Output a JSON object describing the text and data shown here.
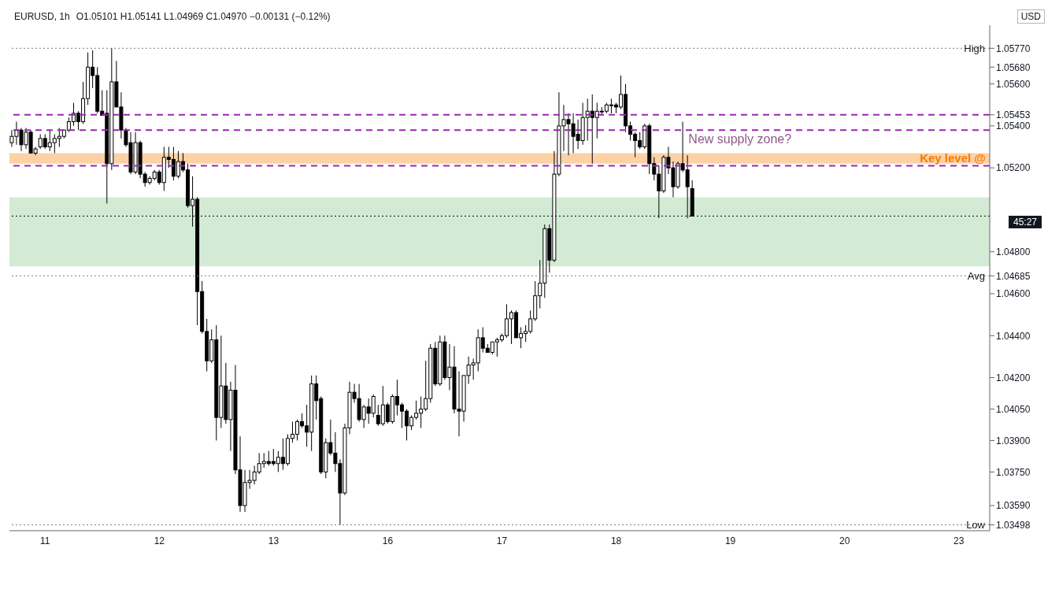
{
  "chart_data": {
    "type": "candlestick",
    "title": "EURUSD, 1h",
    "subtitle": "O1.05101 H1.05141 L1.04969 C1.04970 −0.00131 (−0.12%)",
    "ylabel": "USD",
    "categories": [
      null,
      null,
      null,
      null,
      null,
      null,
      null,
      "11",
      null,
      null,
      null,
      null,
      null,
      null,
      null,
      null,
      null,
      null,
      null,
      null,
      null,
      null,
      null,
      null,
      null,
      null,
      null,
      null,
      null,
      null,
      null,
      "12",
      null,
      null,
      null,
      null,
      null,
      null,
      null,
      null,
      null,
      null,
      null,
      null,
      null,
      null,
      null,
      null,
      null,
      null,
      null,
      null,
      null,
      null,
      null,
      "13",
      null,
      null,
      null,
      null,
      null,
      null,
      null,
      null,
      null,
      null,
      null,
      null,
      null,
      null,
      null,
      null,
      null,
      null,
      null,
      null,
      null,
      null,
      null,
      "16",
      null,
      null,
      null,
      null,
      null,
      null,
      null,
      null,
      null,
      null,
      null,
      null,
      null,
      null,
      null,
      null,
      null,
      null,
      null,
      null,
      null,
      null,
      null,
      "17",
      null,
      null,
      null,
      null,
      null,
      null,
      null,
      null,
      null,
      null,
      null,
      null,
      null,
      null,
      null,
      null,
      null,
      null,
      null,
      null,
      null,
      null,
      null,
      "18",
      null,
      null,
      null,
      null,
      null,
      null,
      null,
      null,
      null,
      null,
      null,
      null,
      null,
      null,
      null,
      null,
      null,
      null,
      null,
      null,
      null,
      null,
      null,
      "19",
      null,
      null,
      null,
      null,
      null,
      null,
      null,
      null,
      null,
      null,
      null,
      null,
      null,
      null,
      null,
      null,
      null,
      null,
      null,
      null,
      null,
      null,
      null,
      "20",
      null,
      null,
      null,
      null,
      null,
      null,
      null,
      null,
      null,
      null,
      null,
      null,
      null,
      null,
      null,
      null,
      null,
      null,
      null,
      null,
      null,
      null,
      null,
      "23",
      null,
      null,
      null,
      null,
      null,
      null
    ],
    "ohlc": [
      [
        1.0532,
        1.0538,
        1.053,
        1.0535
      ],
      [
        1.0535,
        1.0542,
        1.0531,
        1.0538
      ],
      [
        1.0538,
        1.0539,
        1.0528,
        1.0531
      ],
      [
        1.0531,
        1.0539,
        1.0529,
        1.0537
      ],
      [
        1.0537,
        1.0538,
        1.0527,
        1.0527
      ],
      [
        1.0527,
        1.053,
        1.0526,
        1.0529
      ],
      [
        1.053,
        1.0536,
        1.0529,
        1.0534
      ],
      [
        1.0534,
        1.0536,
        1.0529,
        1.053
      ],
      [
        1.053,
        1.0538,
        1.0528,
        1.0532
      ],
      [
        1.0532,
        1.0536,
        1.0527,
        1.0534
      ],
      [
        1.0534,
        1.0539,
        1.053,
        1.0535
      ],
      [
        1.0535,
        1.0538,
        1.0534,
        1.0538
      ],
      [
        1.0538,
        1.0544,
        1.0537,
        1.0542
      ],
      [
        1.0542,
        1.0551,
        1.054,
        1.0546
      ],
      [
        1.0546,
        1.0547,
        1.0538,
        1.0542
      ],
      [
        1.0542,
        1.0561,
        1.0541,
        1.0553
      ],
      [
        1.0553,
        1.0575,
        1.055,
        1.0568
      ],
      [
        1.0568,
        1.0576,
        1.0558,
        1.0564
      ],
      [
        1.0564,
        1.0568,
        1.0546,
        1.0547
      ],
      [
        1.0547,
        1.0557,
        1.0545,
        1.0545
      ],
      [
        1.0546,
        1.0557,
        1.0503,
        1.0522
      ],
      [
        1.0522,
        1.0577,
        1.0519,
        1.0561
      ],
      [
        1.0561,
        1.0571,
        1.0549,
        1.0549
      ],
      [
        1.0549,
        1.0556,
        1.0534,
        1.0538
      ],
      [
        1.0538,
        1.0539,
        1.053,
        1.0531
      ],
      [
        1.0532,
        1.0537,
        1.0517,
        1.0518
      ],
      [
        1.0518,
        1.0537,
        1.0517,
        1.0532
      ],
      [
        1.0532,
        1.0533,
        1.0515,
        1.0517
      ],
      [
        1.0517,
        1.0518,
        1.0511,
        1.0513
      ],
      [
        1.0513,
        1.0516,
        1.0512,
        1.0515
      ],
      [
        1.0515,
        1.0519,
        1.0514,
        1.0518
      ],
      [
        1.0518,
        1.0519,
        1.0512,
        1.0513
      ],
      [
        1.0513,
        1.053,
        1.0509,
        1.0525
      ],
      [
        1.0525,
        1.053,
        1.052,
        1.0524
      ],
      [
        1.0524,
        1.053,
        1.0514,
        1.0516
      ],
      [
        1.0516,
        1.0528,
        1.0515,
        1.0523
      ],
      [
        1.0523,
        1.0527,
        1.0518,
        1.0519
      ],
      [
        1.0519,
        1.0522,
        1.0501,
        1.0502
      ],
      [
        1.0502,
        1.0516,
        1.0492,
        1.0505
      ],
      [
        1.0505,
        1.0506,
        1.0445,
        1.0461
      ],
      [
        1.0461,
        1.0466,
        1.0441,
        1.0442
      ],
      [
        1.0442,
        1.0448,
        1.0423,
        1.0428
      ],
      [
        1.0428,
        1.0443,
        1.0427,
        1.0438
      ],
      [
        1.0438,
        1.0445,
        1.039,
        1.0401
      ],
      [
        1.0401,
        1.044,
        1.0396,
        1.0416
      ],
      [
        1.0416,
        1.0427,
        1.0398,
        1.04
      ],
      [
        1.04,
        1.0418,
        1.0385,
        1.0414
      ],
      [
        1.0414,
        1.0426,
        1.0374,
        1.0376
      ],
      [
        1.0376,
        1.0392,
        1.0356,
        1.0359
      ],
      [
        1.0359,
        1.0376,
        1.0356,
        1.037
      ],
      [
        1.037,
        1.0376,
        1.0367,
        1.0371
      ],
      [
        1.0371,
        1.0378,
        1.0369,
        1.0375
      ],
      [
        1.0375,
        1.0384,
        1.0374,
        1.0379
      ],
      [
        1.0379,
        1.0384,
        1.0377,
        1.038
      ],
      [
        1.038,
        1.0385,
        1.0378,
        1.0379
      ],
      [
        1.038,
        1.0386,
        1.0378,
        1.0379
      ],
      [
        1.0379,
        1.0385,
        1.0375,
        1.0382
      ],
      [
        1.0382,
        1.0391,
        1.0376,
        1.0379
      ],
      [
        1.0379,
        1.0393,
        1.0378,
        1.0391
      ],
      [
        1.0391,
        1.0399,
        1.0389,
        1.0393
      ],
      [
        1.0393,
        1.04,
        1.039,
        1.0399
      ],
      [
        1.0399,
        1.0403,
        1.0396,
        1.0397
      ],
      [
        1.0397,
        1.0407,
        1.0387,
        1.0394
      ],
      [
        1.0394,
        1.0421,
        1.0385,
        1.0417
      ],
      [
        1.0417,
        1.0421,
        1.04,
        1.0409
      ],
      [
        1.041,
        1.0411,
        1.0374,
        1.0375
      ],
      [
        1.0375,
        1.0391,
        1.0372,
        1.0389
      ],
      [
        1.0389,
        1.04,
        1.0383,
        1.0384
      ],
      [
        1.0384,
        1.0394,
        1.0375,
        1.0379
      ],
      [
        1.0379,
        1.0381,
        1.03498,
        1.0365
      ],
      [
        1.0365,
        1.0398,
        1.0364,
        1.0396
      ],
      [
        1.0396,
        1.0418,
        1.0393,
        1.0413
      ],
      [
        1.0413,
        1.0417,
        1.0408,
        1.041
      ],
      [
        1.041,
        1.0417,
        1.0399,
        1.04
      ],
      [
        1.04,
        1.0407,
        1.0396,
        1.0406
      ],
      [
        1.0406,
        1.041,
        1.0398,
        1.0403
      ],
      [
        1.0403,
        1.0412,
        1.0401,
        1.0411
      ],
      [
        1.0402,
        1.0407,
        1.0397,
        1.0398
      ],
      [
        1.0398,
        1.0416,
        1.0397,
        1.0407
      ],
      [
        1.0407,
        1.0408,
        1.0398,
        1.0399
      ],
      [
        1.0399,
        1.0412,
        1.0398,
        1.0411
      ],
      [
        1.0411,
        1.0419,
        1.0402,
        1.0407
      ],
      [
        1.0407,
        1.0408,
        1.0396,
        1.0404
      ],
      [
        1.0404,
        1.0405,
        1.039,
        1.0397
      ],
      [
        1.0397,
        1.0402,
        1.0395,
        1.0401
      ],
      [
        1.0401,
        1.0409,
        1.04,
        1.0403
      ],
      [
        1.0403,
        1.0411,
        1.0396,
        1.0405
      ],
      [
        1.0405,
        1.0428,
        1.0404,
        1.041
      ],
      [
        1.041,
        1.0436,
        1.0408,
        1.0434
      ],
      [
        1.0434,
        1.0437,
        1.0416,
        1.0417
      ],
      [
        1.0417,
        1.044,
        1.0416,
        1.0437
      ],
      [
        1.0437,
        1.044,
        1.0419,
        1.042
      ],
      [
        1.042,
        1.0436,
        1.0414,
        1.0425
      ],
      [
        1.0425,
        1.0435,
        1.0403,
        1.0405
      ],
      [
        1.0405,
        1.0423,
        1.0392,
        1.0404
      ],
      [
        1.0404,
        1.0421,
        1.0399,
        1.0421
      ],
      [
        1.0421,
        1.043,
        1.0417,
        1.0426
      ],
      [
        1.0426,
        1.0429,
        1.0419,
        1.0427
      ],
      [
        1.0427,
        1.0443,
        1.0423,
        1.0439
      ],
      [
        1.0439,
        1.0444,
        1.0432,
        1.0434
      ],
      [
        1.0434,
        1.0436,
        1.0432,
        1.0432
      ],
      [
        1.0432,
        1.0437,
        1.0431,
        1.0437
      ],
      [
        1.0437,
        1.0439,
        1.043,
        1.0438
      ],
      [
        1.0438,
        1.0441,
        1.0437,
        1.044
      ],
      [
        1.044,
        1.0455,
        1.0439,
        1.0448
      ],
      [
        1.0448,
        1.0452,
        1.0436,
        1.0451
      ],
      [
        1.0451,
        1.0452,
        1.0439,
        1.0439
      ],
      [
        1.0439,
        1.0444,
        1.0434,
        1.0441
      ],
      [
        1.0441,
        1.0445,
        1.0437,
        1.0442
      ],
      [
        1.0442,
        1.0452,
        1.0441,
        1.0448
      ],
      [
        1.0448,
        1.0466,
        1.0447,
        1.0459
      ],
      [
        1.0459,
        1.0476,
        1.0453,
        1.0465
      ],
      [
        1.0465,
        1.0493,
        1.0458,
        1.0491
      ],
      [
        1.0491,
        1.0493,
        1.047,
        1.0476
      ],
      [
        1.0476,
        1.0528,
        1.0475,
        1.0517
      ],
      [
        1.0517,
        1.0556,
        1.0516,
        1.054
      ],
      [
        1.054,
        1.055,
        1.0528,
        1.0543
      ],
      [
        1.0543,
        1.0546,
        1.0526,
        1.0541
      ],
      [
        1.0541,
        1.0546,
        1.0527,
        1.0535
      ],
      [
        1.0536,
        1.0543,
        1.0529,
        1.0533
      ],
      [
        1.0533,
        1.0551,
        1.0531,
        1.0544
      ],
      [
        1.0544,
        1.0553,
        1.0533,
        1.0547
      ],
      [
        1.0547,
        1.0555,
        1.0522,
        1.0544
      ],
      [
        1.0544,
        1.0551,
        1.0534,
        1.0547
      ],
      [
        1.0547,
        1.0549,
        1.0545,
        1.0547
      ],
      [
        1.0547,
        1.0551,
        1.0546,
        1.055
      ],
      [
        1.055,
        1.0553,
        1.0546,
        1.055
      ],
      [
        1.055,
        1.0551,
        1.0546,
        1.0549
      ],
      [
        1.0549,
        1.0564,
        1.0548,
        1.0555
      ],
      [
        1.0555,
        1.056,
        1.0537,
        1.054
      ],
      [
        1.054,
        1.0542,
        1.0533,
        1.0536
      ],
      [
        1.0536,
        1.0537,
        1.0525,
        1.0533
      ],
      [
        1.0533,
        1.0537,
        1.0529,
        1.053
      ],
      [
        1.053,
        1.0541,
        1.0529,
        1.054
      ],
      [
        1.054,
        1.0541,
        1.0517,
        1.0522
      ],
      [
        1.0522,
        1.0525,
        1.0514,
        1.0517
      ],
      [
        1.0517,
        1.0521,
        1.0496,
        1.0509
      ],
      [
        1.0509,
        1.0526,
        1.0508,
        1.0525
      ],
      [
        1.0525,
        1.053,
        1.0517,
        1.052
      ],
      [
        1.052,
        1.0523,
        1.0506,
        1.0511
      ],
      [
        1.0511,
        1.0523,
        1.051,
        1.0522
      ],
      [
        1.0522,
        1.0542,
        1.0518,
        1.0519
      ],
      [
        1.0519,
        1.0526,
        1.0496,
        1.0511
      ],
      [
        1.05101,
        1.05141,
        1.04969,
        1.0497
      ],
      null,
      null,
      null,
      null,
      null,
      null,
      null,
      null,
      null,
      null,
      null,
      null,
      null,
      null,
      null,
      null,
      null,
      null,
      null,
      null,
      null,
      null,
      null,
      null,
      null,
      null,
      null,
      null,
      null,
      null,
      null,
      null,
      null,
      null,
      null,
      null,
      null,
      null,
      null,
      null,
      null,
      null,
      null,
      null,
      null,
      null,
      null,
      null,
      null,
      null,
      null,
      null,
      null,
      null,
      null,
      null,
      null,
      null,
      null,
      null,
      null,
      null
    ],
    "color": "#000000",
    "ylim": [
      1.0347,
      1.0588
    ],
    "yticks": [
      {
        "value": 1.0577,
        "label": "1.05770"
      },
      {
        "value": 1.0568,
        "label": "1.05680"
      },
      {
        "value": 1.056,
        "label": "1.05600"
      },
      {
        "value": 1.05453,
        "label": "1.05453"
      },
      {
        "value": 1.054,
        "label": "1.05400"
      },
      {
        "value": 1.052,
        "label": "1.05200"
      },
      {
        "value": 1.048,
        "label": "1.04800"
      },
      {
        "value": 1.04685,
        "label": "1.04685"
      },
      {
        "value": 1.046,
        "label": "1.04600"
      },
      {
        "value": 1.044,
        "label": "1.04400"
      },
      {
        "value": 1.042,
        "label": "1.04200"
      },
      {
        "value": 1.0405,
        "label": "1.04050"
      },
      {
        "value": 1.039,
        "label": "1.03900"
      },
      {
        "value": 1.0375,
        "label": "1.03750"
      },
      {
        "value": 1.0359,
        "label": "1.03590"
      },
      {
        "value": 1.03498,
        "label": "1.03498"
      }
    ],
    "ref_lines": [
      {
        "axis": "y",
        "value": 1.0577,
        "label": "High",
        "color": "#787b86",
        "line_style": "dotted"
      },
      {
        "axis": "y",
        "value": 1.05453,
        "label": null,
        "color": "#9c27b0",
        "line_style": "dashed"
      },
      {
        "axis": "y",
        "value": 1.0538,
        "label": null,
        "color": "#9c27b0",
        "line_style": "dashed"
      },
      {
        "axis": "y",
        "value": 1.0521,
        "label": null,
        "color": "#9c27b0",
        "line_style": "dashed"
      },
      {
        "axis": "y",
        "value": 1.0497,
        "label": null,
        "color": "#000000",
        "line_style": "dotted"
      },
      {
        "axis": "y",
        "value": 1.04685,
        "label": "Avg",
        "color": "#787b86",
        "line_style": "dotted"
      },
      {
        "axis": "y",
        "value": 1.03498,
        "label": "Low",
        "color": "#787b86",
        "line_style": "dotted"
      }
    ],
    "bands": [
      {
        "axis": "y",
        "from": 1.0522,
        "to": 1.0527,
        "label": "Key level @",
        "color": "#f57c00"
      },
      {
        "axis": "y",
        "from": 1.0473,
        "to": 1.0506,
        "label": null,
        "color": "#81c784"
      }
    ],
    "annotations": [
      {
        "text": "New supply zone?",
        "y": 1.0537
      },
      "45:27"
    ],
    "grid": false
  }
}
